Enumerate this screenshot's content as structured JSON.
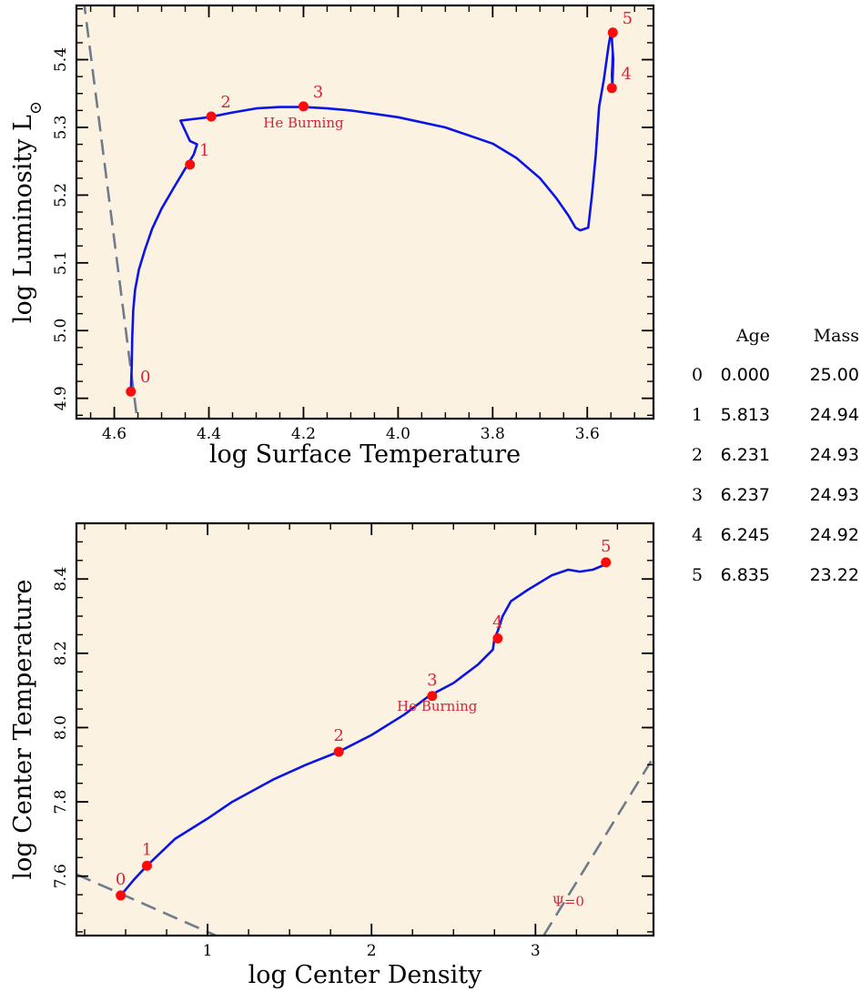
{
  "chart_data": [
    {
      "type": "line",
      "xlabel": "log Surface Temperature",
      "ylabel": "log Luminosity L",
      "ylabel_symbol": "⊙",
      "xlim": [
        4.68,
        3.46
      ],
      "ylim": [
        4.87,
        5.48
      ],
      "x_reversed": true,
      "xticks": [
        4.6,
        4.4,
        4.2,
        4.0,
        3.8,
        3.6
      ],
      "xtick_labels": [
        "4.6",
        "4.4",
        "4.2",
        "4.0",
        "3.8",
        "3.6"
      ],
      "yticks": [
        4.9,
        5.0,
        5.1,
        5.2,
        5.3,
        5.4
      ],
      "ytick_labels": [
        "4.9",
        "5.0",
        "5.1",
        "5.2",
        "5.3",
        "5.4"
      ],
      "background": "#fcf2e2",
      "series": [
        {
          "color": "#0a14e6",
          "x": [
            4.565,
            4.563,
            4.562,
            4.56,
            4.556,
            4.548,
            4.535,
            4.52,
            4.5,
            4.475,
            4.445,
            4.432,
            4.425,
            4.44,
            4.46,
            4.4,
            4.35,
            4.3,
            4.25,
            4.2,
            4.15,
            4.1,
            4.0,
            3.9,
            3.8,
            3.75,
            3.7,
            3.665,
            3.64,
            3.625,
            3.615,
            3.598,
            3.59,
            3.582,
            3.575,
            3.565,
            3.555,
            3.55,
            3.548,
            3.546,
            3.547,
            3.548,
            3.547,
            3.545,
            3.548,
            3.546
          ],
          "y": [
            4.91,
            4.95,
            4.99,
            5.03,
            5.06,
            5.09,
            5.12,
            5.15,
            5.18,
            5.21,
            5.245,
            5.26,
            5.275,
            5.28,
            5.31,
            5.315,
            5.322,
            5.328,
            5.33,
            5.33,
            5.328,
            5.325,
            5.315,
            5.3,
            5.276,
            5.255,
            5.225,
            5.195,
            5.17,
            5.152,
            5.148,
            5.152,
            5.2,
            5.26,
            5.33,
            5.37,
            5.42,
            5.44,
            5.43,
            5.41,
            5.39,
            5.378,
            5.36,
            5.4,
            5.43,
            5.44
          ]
        }
      ],
      "markers": [
        {
          "label": "0",
          "x": 4.565,
          "y": 4.91
        },
        {
          "label": "1",
          "x": 4.44,
          "y": 5.245
        },
        {
          "label": "2",
          "x": 4.395,
          "y": 5.316
        },
        {
          "label": "3",
          "x": 4.2,
          "y": 5.331
        },
        {
          "label": "4",
          "x": 3.548,
          "y": 5.358
        },
        {
          "label": "5",
          "x": 3.546,
          "y": 5.44
        }
      ],
      "marker_color": "#ff0a0a",
      "annotations": [
        {
          "text": "He Burning",
          "x": 4.2,
          "y": 5.3
        }
      ],
      "reference_line": {
        "color": "#6f7b8b",
        "x": [
          4.665,
          4.55
        ],
        "y": [
          5.49,
          4.86
        ]
      }
    },
    {
      "type": "line",
      "xlabel": "log Center Density",
      "ylabel": "log Center Temperature",
      "xlim": [
        0.2,
        3.72
      ],
      "ylim": [
        7.44,
        8.55
      ],
      "xticks": [
        1,
        2,
        3
      ],
      "xtick_labels": [
        "1",
        "2",
        "3"
      ],
      "yticks": [
        7.6,
        7.8,
        8.0,
        8.2,
        8.4
      ],
      "ytick_labels": [
        "7.6",
        "7.8",
        "8.0",
        "8.2",
        "8.4"
      ],
      "background": "#fcf2e2",
      "series": [
        {
          "color": "#0a14e6",
          "x": [
            0.47,
            0.55,
            0.63,
            0.8,
            1.0,
            1.15,
            1.4,
            1.6,
            1.8,
            2.0,
            2.2,
            2.35,
            2.5,
            2.65,
            2.74,
            2.75,
            2.77,
            2.8,
            2.85,
            2.95,
            3.1,
            3.2,
            3.27,
            3.35,
            3.43
          ],
          "y": [
            7.548,
            7.59,
            7.628,
            7.7,
            7.755,
            7.8,
            7.86,
            7.9,
            7.935,
            7.98,
            8.035,
            8.085,
            8.12,
            8.17,
            8.21,
            8.24,
            8.26,
            8.3,
            8.34,
            8.37,
            8.41,
            8.425,
            8.42,
            8.425,
            8.44
          ]
        }
      ],
      "markers": [
        {
          "label": "0",
          "x": 0.47,
          "y": 7.548
        },
        {
          "label": "1",
          "x": 0.63,
          "y": 7.628
        },
        {
          "label": "2",
          "x": 1.8,
          "y": 7.935
        },
        {
          "label": "3",
          "x": 2.37,
          "y": 8.085
        },
        {
          "label": "4",
          "x": 2.77,
          "y": 8.24
        },
        {
          "label": "5",
          "x": 3.43,
          "y": 8.445
        }
      ],
      "marker_color": "#ff0a0a",
      "annotations": [
        {
          "text": "He Burning",
          "x": 2.4,
          "y": 8.045
        },
        {
          "text": "Ψ=0",
          "x": 3.2,
          "y": 7.52
        }
      ],
      "reference_lines": [
        {
          "color": "#6f7b8b",
          "x": [
            0.2,
            1.05
          ],
          "y": [
            7.605,
            7.44
          ]
        },
        {
          "color": "#6f7b8b",
          "x": [
            3.05,
            3.72
          ],
          "y": [
            7.44,
            7.92
          ]
        }
      ]
    }
  ],
  "table": {
    "headers": [
      "Age",
      "Mass"
    ],
    "rows": [
      {
        "index": "0",
        "age": "0.000",
        "mass": "25.00"
      },
      {
        "index": "1",
        "age": "5.813",
        "mass": "24.94"
      },
      {
        "index": "2",
        "age": "6.231",
        "mass": "24.93"
      },
      {
        "index": "3",
        "age": "6.237",
        "mass": "24.93"
      },
      {
        "index": "4",
        "age": "6.245",
        "mass": "24.92"
      },
      {
        "index": "5",
        "age": "6.835",
        "mass": "23.22"
      }
    ]
  }
}
